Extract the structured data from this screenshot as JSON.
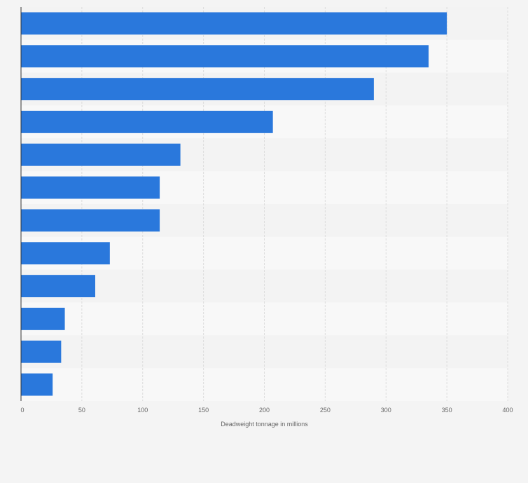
{
  "chart_data": {
    "type": "bar",
    "orientation": "horizontal",
    "title": "",
    "xlabel": "Deadweight tonnage in millions",
    "ylabel": "",
    "categories": [
      "",
      "",
      "",
      "",
      "",
      "",
      "",
      "",
      "",
      "",
      "",
      ""
    ],
    "values": [
      350,
      335,
      290,
      207,
      131,
      114,
      114,
      73,
      61,
      36,
      33,
      26
    ],
    "xlim": [
      0,
      400
    ],
    "xticks": [
      0,
      50,
      100,
      150,
      200,
      250,
      300,
      350,
      400
    ],
    "grid": true,
    "legend": "none"
  },
  "colors": {
    "bar": "#2a78dc",
    "background": "#f4f4f4",
    "band_even": "#f3f3f3",
    "band_odd": "#f8f8f8",
    "grid": "#dcdcdc",
    "axis": "#333333",
    "text": "#666666"
  }
}
